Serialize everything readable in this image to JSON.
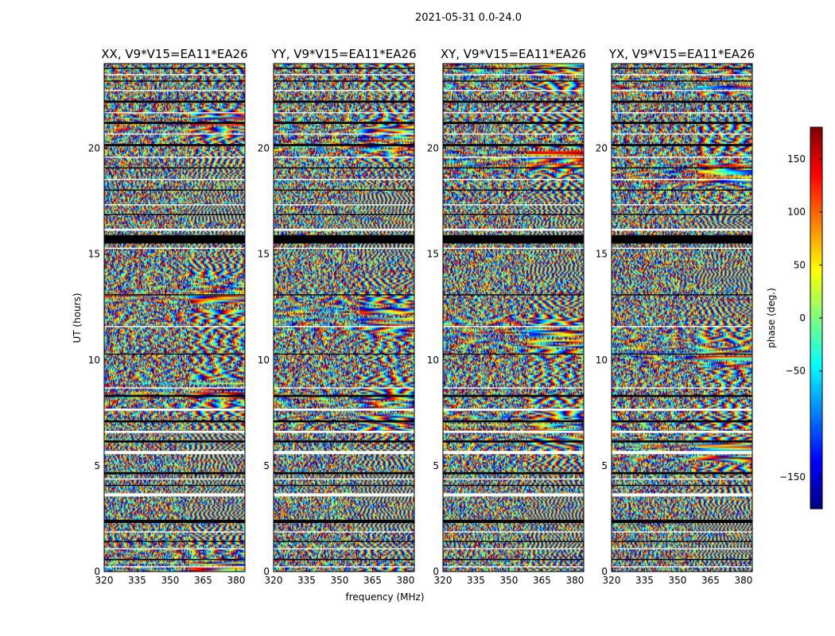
{
  "chart_data": {
    "type": "heatmap",
    "suptitle": "2021-05-31 0.0-24.0",
    "xlabel": "frequency (MHz)",
    "ylabel": "UT (hours)",
    "xlim": [
      320,
      384
    ],
    "ylim": [
      0,
      24
    ],
    "xticks": [
      320,
      335,
      350,
      365,
      380
    ],
    "yticks": [
      0,
      5,
      10,
      15,
      20
    ],
    "colormap": "jet",
    "colorbar": {
      "label": "phase (deg.)",
      "range": [
        -180,
        180
      ],
      "ticks": [
        150,
        100,
        50,
        0,
        -50,
        -150
      ],
      "tick_labels": [
        "150",
        "100",
        "50",
        "0",
        "−50",
        "−150"
      ],
      "colors": [
        "#00007f",
        "#0000ff",
        "#007fff",
        "#00ffff",
        "#7fff7f",
        "#ffff00",
        "#ff7f00",
        "#ff0000",
        "#7f0000"
      ]
    },
    "panels": [
      {
        "title": "XX, V9*V15=EA11*EA26",
        "pol": "XX"
      },
      {
        "title": "YY, V9*V15=EA11*EA26",
        "pol": "YY"
      },
      {
        "title": "XY, V9*V15=EA11*EA26",
        "pol": "XY"
      },
      {
        "title": "YX, V9*V15=EA11*EA26",
        "pol": "YX"
      }
    ],
    "flagged_time_ranges_ut_hours": [
      [
        0.2,
        0.25
      ],
      [
        0.55,
        0.6
      ],
      [
        1.05,
        1.1
      ],
      [
        1.4,
        1.45
      ],
      [
        1.85,
        1.9
      ],
      [
        2.3,
        2.45
      ],
      [
        3.55,
        3.7
      ],
      [
        4.05,
        4.1
      ],
      [
        4.35,
        4.4
      ],
      [
        4.6,
        4.7
      ],
      [
        5.55,
        5.7
      ],
      [
        6.1,
        6.2
      ],
      [
        6.55,
        6.65
      ],
      [
        7.05,
        7.15
      ],
      [
        7.6,
        7.7
      ],
      [
        8.25,
        8.35
      ],
      [
        8.65,
        8.7
      ],
      [
        10.25,
        10.3
      ],
      [
        11.55,
        11.6
      ],
      [
        13.05,
        13.1
      ],
      [
        15.25,
        15.3
      ],
      [
        15.5,
        15.9
      ],
      [
        16.1,
        16.2
      ],
      [
        16.85,
        16.9
      ],
      [
        17.3,
        17.35
      ],
      [
        18.0,
        18.05
      ],
      [
        18.5,
        18.55
      ],
      [
        19.05,
        19.1
      ],
      [
        19.55,
        19.6
      ],
      [
        20.1,
        20.2
      ],
      [
        20.65,
        20.7
      ],
      [
        21.15,
        21.25
      ],
      [
        21.65,
        21.7
      ],
      [
        22.15,
        22.25
      ],
      [
        22.7,
        22.75
      ],
      [
        23.15,
        23.2
      ],
      [
        23.45,
        23.5
      ],
      [
        23.75,
        23.8
      ]
    ]
  }
}
